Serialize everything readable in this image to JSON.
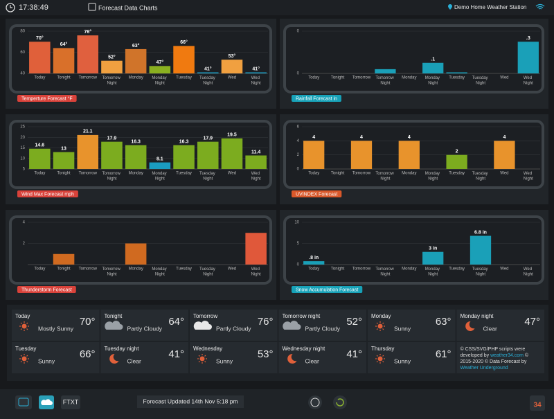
{
  "header": {
    "time": "17:38:49",
    "title": "Forecast Data Charts",
    "station": "Demo Home Weather Station"
  },
  "chart_data": [
    {
      "type": "bar",
      "title": "Temperture Forecast °F",
      "badge_color": "#d9423a",
      "categories": [
        "Today",
        "Tonight",
        "Tomorrow",
        "Tomorrow Night",
        "Monday",
        "Monday Night",
        "Tuesday",
        "Tuesday Night",
        "Wed",
        "Wed Night"
      ],
      "values": [
        70,
        64,
        76,
        52,
        63,
        47,
        66,
        41,
        53,
        41
      ],
      "value_labels": [
        "70°",
        "64°",
        "76°",
        "52°",
        "63°",
        "47°",
        "66°",
        "41°",
        "53°",
        "41°"
      ],
      "colors": [
        "#e0603a",
        "#d9702a",
        "#e0603e",
        "#f0a040",
        "#d0742a",
        "#8ab020",
        "#f07a10",
        "#1e9cc0",
        "#f0a040",
        "#1e9cc0"
      ],
      "ylim": [
        40,
        80
      ],
      "yticks": [
        40,
        60,
        80
      ]
    },
    {
      "type": "bar",
      "title": "Rainfall Forecast in",
      "badge_color": "#17a2b8",
      "categories": [
        "Today",
        "Tonight",
        "Tomorrow",
        "Tomorrow Night",
        "Monday",
        "Monday Night",
        "Tuesday",
        "Tuesday Night",
        "Wed",
        "Wed Night"
      ],
      "values": [
        0,
        0,
        0,
        0.04,
        0,
        0.1,
        0.01,
        0,
        0,
        0.3
      ],
      "value_labels": [
        null,
        null,
        null,
        null,
        null,
        ".1",
        null,
        null,
        null,
        ".3"
      ],
      "colors": [
        "#1aa0b8",
        "#1aa0b8",
        "#1aa0b8",
        "#1aa0b8",
        "#1aa0b8",
        "#1aa0b8",
        "#1aa0b8",
        "#1aa0b8",
        "#1aa0b8",
        "#1aa0b8"
      ],
      "ylim": [
        0,
        0.4
      ],
      "yticks": [
        0,
        {
          "value": 0.4,
          "label": "0"
        }
      ]
    },
    {
      "type": "bar",
      "title": "Wind Max Forecast mph",
      "badge_color": "#d9423a",
      "data_labels": true,
      "categories": [
        "Today",
        "Tonight",
        "Tomorrow",
        "Tomorrow Night",
        "Monday",
        "Monday Night",
        "Tuesday",
        "Tuesday Night",
        "Wed",
        "Wed Night"
      ],
      "values": [
        14.6,
        13,
        21.1,
        17.9,
        16.3,
        8.1,
        16.3,
        17.9,
        19.5,
        11.4
      ],
      "colors": [
        "#7cac1f",
        "#7cac1f",
        "#e8932c",
        "#7cac1f",
        "#7cac1f",
        "#1a9cc0",
        "#7cac1f",
        "#7cac1f",
        "#7cac1f",
        "#7cac1f"
      ],
      "ylim": [
        5,
        25
      ],
      "yticks": [
        5,
        10,
        15,
        20,
        25
      ]
    },
    {
      "type": "bar",
      "title": "UVINDEX Forecast",
      "badge_color": "#d9582a",
      "data_labels": true,
      "categories": [
        "Today",
        "Tonight",
        "Tomorrow",
        "Tomorrow Night",
        "Monday",
        "Monday Night",
        "Tuesday",
        "Tuesday Night",
        "Wed",
        "Wed Night"
      ],
      "values": [
        4,
        0,
        4,
        0,
        4,
        0,
        2,
        0,
        4,
        0
      ],
      "colors": [
        "#e8932c",
        "#e8932c",
        "#e8932c",
        "#e8932c",
        "#e8932c",
        "#e8932c",
        "#7cac1f",
        "#e8932c",
        "#e8932c",
        "#e8932c"
      ],
      "ylim": [
        0,
        6
      ],
      "yticks": [
        0,
        2,
        4,
        6
      ]
    },
    {
      "type": "bar",
      "title": "Thunderstorm Forecast",
      "badge_color": "#d9423a",
      "categories": [
        "Today",
        "Tonight",
        "Tomorrow",
        "Tomorrow Night",
        "Monday",
        "Monday Night",
        "Tuesday",
        "Tuesday Night",
        "Wed",
        "Wed Night"
      ],
      "values": [
        0,
        1,
        0,
        0,
        2,
        0,
        0,
        0,
        0,
        3
      ],
      "colors": [
        "#d06a20",
        "#d06a20",
        "#d06a20",
        "#d06a20",
        "#d06a20",
        "#d06a20",
        "#d06a20",
        "#d06a20",
        "#d06a20",
        "#e0583a"
      ],
      "ylim": [
        0,
        4
      ],
      "yticks": [
        2,
        4
      ]
    },
    {
      "type": "bar",
      "title": "Snow Accumulation Forecast",
      "badge_color": "#17a2b8",
      "categories": [
        "Today",
        "Tonight",
        "Tomorrow",
        "Tomorrow Night",
        "Monday",
        "Monday Night",
        "Tuesday",
        "Tuesday Night",
        "Wed",
        "Wed Night"
      ],
      "values": [
        0.8,
        0,
        0,
        0,
        0,
        3,
        0,
        6.8,
        0,
        0
      ],
      "value_labels": [
        ".8 in",
        null,
        null,
        null,
        null,
        "3 in",
        null,
        "6.8 in",
        null,
        null
      ],
      "colors": [
        "#1aa0b8",
        "#1aa0b8",
        "#1aa0b8",
        "#1aa0b8",
        "#1aa0b8",
        "#1aa0b8",
        "#1aa0b8",
        "#1aa0b8",
        "#1aa0b8",
        "#1aa0b8"
      ],
      "ylim": [
        0,
        10
      ],
      "yticks": [
        0,
        5,
        10
      ]
    }
  ],
  "forecast": [
    {
      "period": "Today",
      "temp": "70°",
      "condition": "Mostly Sunny",
      "color": "#e0603a"
    },
    {
      "period": "Tonight",
      "temp": "64°",
      "condition": "Partly Cloudy",
      "color": "#e0853a"
    },
    {
      "period": "Tomorrow",
      "temp": "76°",
      "condition": "Partly Cloudy",
      "color": "#e0603e"
    },
    {
      "period": "Tomorrow night",
      "temp": "52°",
      "condition": "Partly Cloudy",
      "color": "#8ab030"
    },
    {
      "period": "Monday",
      "temp": "63°",
      "condition": "Sunny",
      "color": "#e0853a"
    },
    {
      "period": "Monday night",
      "temp": "47°",
      "condition": "Clear",
      "color": "#8ab030"
    },
    {
      "period": "Tuesday",
      "temp": "66°",
      "condition": "Sunny",
      "color": "#e0603e"
    },
    {
      "period": "Tuesday night",
      "temp": "41°",
      "condition": "Clear",
      "color": "#2aa8d0"
    },
    {
      "period": "Wednesday",
      "temp": "53°",
      "condition": "Sunny",
      "color": "#8ab030"
    },
    {
      "period": "Wednesday night",
      "temp": "41°",
      "condition": "Clear",
      "color": "#2aa8d0"
    },
    {
      "period": "Thursday",
      "temp": "61°",
      "condition": "Sunny",
      "color": "#e8a030"
    }
  ],
  "credits": [
    [
      {
        "text": "© CSS/SVG/PHP scripts were"
      }
    ],
    [
      {
        "text": "developed by "
      },
      {
        "text": "weather34.com",
        "link": true
      },
      {
        "text": " ©"
      }
    ],
    [
      {
        "text": "2015-2020 © Data Forecast by"
      }
    ],
    [
      {
        "text": "Weather Underground",
        "link": true
      }
    ]
  ],
  "footer": {
    "ftxt": "FTXT",
    "updated": "Forecast Updated 14th Nov 5:18 pm",
    "logo": "34"
  }
}
